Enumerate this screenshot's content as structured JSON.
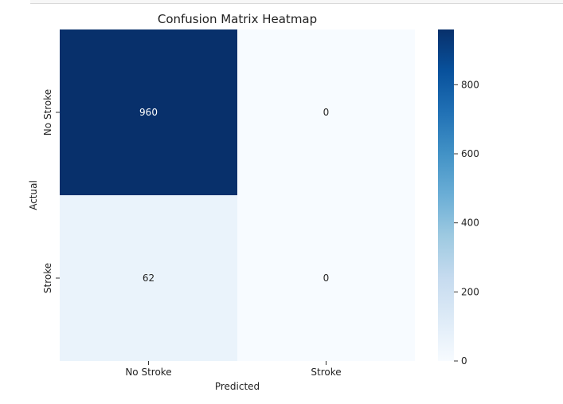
{
  "chart_data": {
    "type": "heatmap",
    "title": "Confusion Matrix Heatmap",
    "xlabel": "Predicted",
    "ylabel": "Actual",
    "x_categories": [
      "No Stroke",
      "Stroke"
    ],
    "y_categories": [
      "No Stroke",
      "Stroke"
    ],
    "values": [
      [
        960,
        0
      ],
      [
        62,
        0
      ]
    ],
    "colormap": "Blues",
    "colorbar": {
      "min": 0,
      "max": 960,
      "ticks": [
        0,
        200,
        400,
        600,
        800
      ]
    }
  }
}
